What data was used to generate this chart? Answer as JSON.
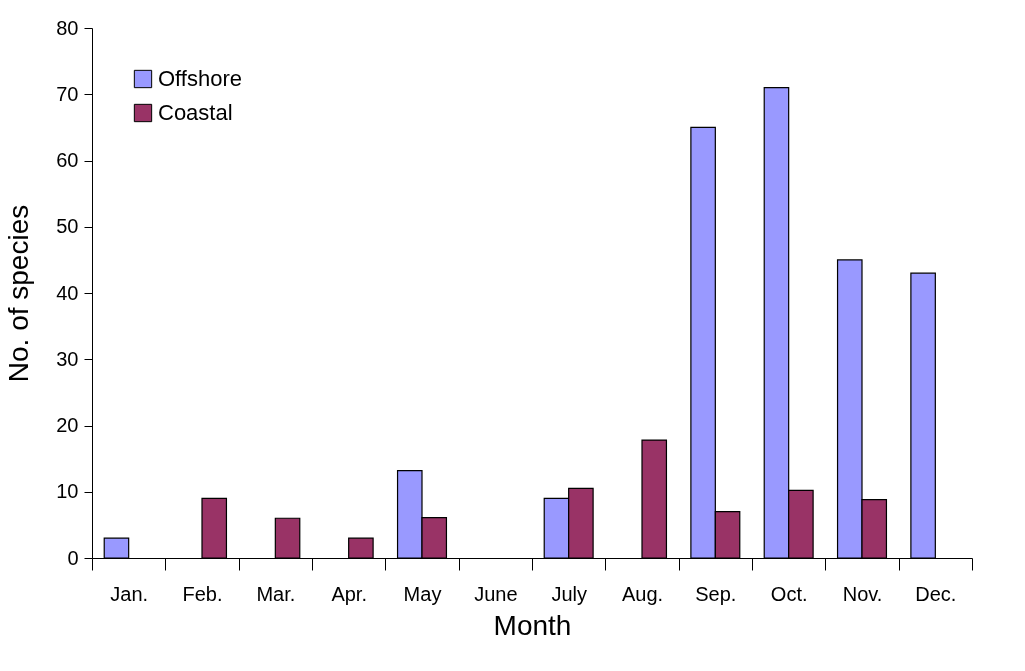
{
  "chart_data": {
    "type": "bar",
    "xlabel": "Month",
    "ylabel": "No. of species",
    "categories": [
      "Jan.",
      "Feb.",
      "Mar.",
      "Apr.",
      "May",
      "June",
      "July",
      "Aug.",
      "Sep.",
      "Oct.",
      "Nov.",
      "Dec."
    ],
    "series": [
      {
        "name": "Offshore",
        "color": "#9999ff",
        "values": [
          3,
          null,
          null,
          null,
          13.2,
          null,
          9,
          null,
          65,
          71,
          45,
          43
        ]
      },
      {
        "name": "Coastal",
        "color": "#993366",
        "values": [
          null,
          9,
          6,
          3,
          6.1,
          null,
          10.5,
          17.8,
          7,
          10.2,
          8.8,
          null
        ]
      }
    ],
    "ylim": [
      0,
      80
    ],
    "yticks": [
      0,
      10,
      20,
      30,
      40,
      50,
      60,
      70,
      80
    ],
    "grid": false,
    "legend": "top left"
  }
}
